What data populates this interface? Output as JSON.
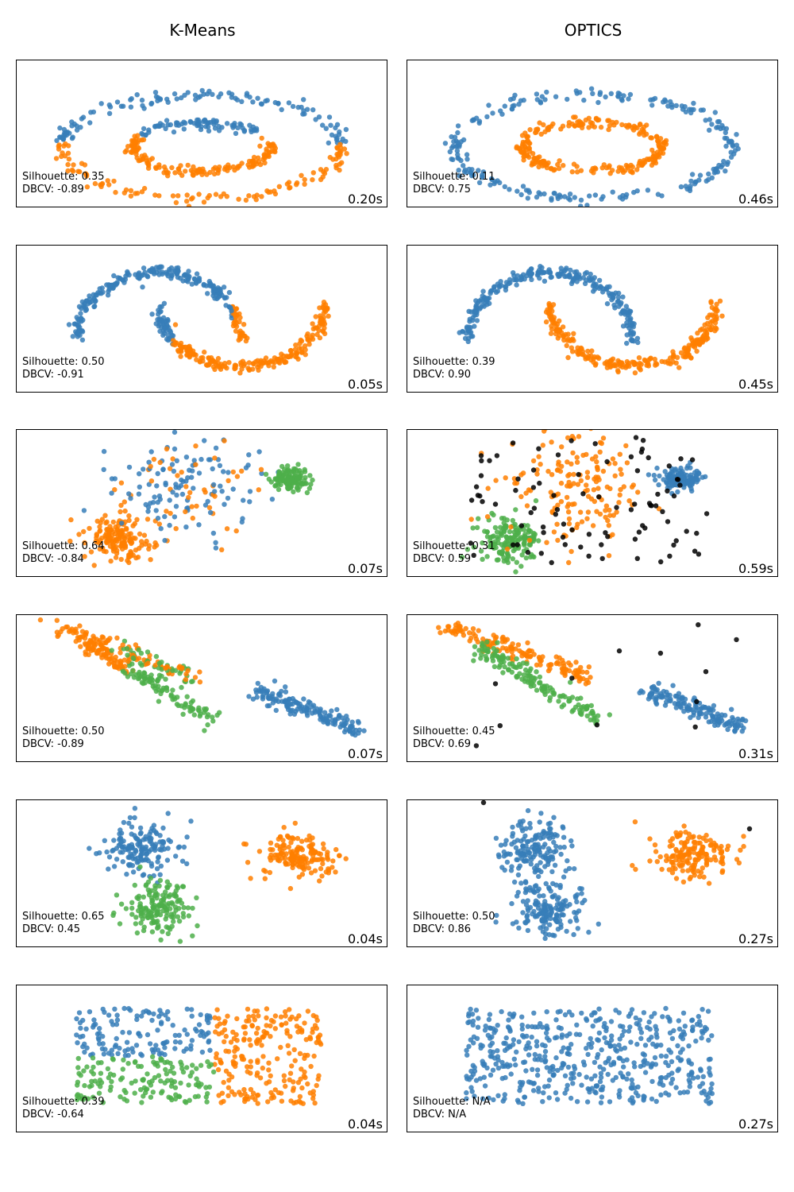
{
  "columns": [
    "K-Means",
    "OPTICS"
  ],
  "colors": {
    "c0": "#377eb8",
    "c1": "#ff7f00",
    "c2": "#4daf4a",
    "noise": "#000000"
  },
  "chart_data": [
    {
      "type": "scatter",
      "dataset": "circles",
      "algorithm": "K-Means",
      "silhouette": "Silhouette: 0.35",
      "dbcv": "DBCV: -0.89",
      "time": "0.20s",
      "xlim": [
        -1.15,
        1.15
      ],
      "ylim": [
        -1.15,
        1.15
      ],
      "groups": [
        {
          "color": "#377eb8",
          "region": "outer ring upper half + inner ring upper half"
        },
        {
          "color": "#ff7f00",
          "region": "outer ring lower half + inner ring lower half"
        }
      ]
    },
    {
      "type": "scatter",
      "dataset": "circles",
      "algorithm": "OPTICS",
      "silhouette": "Silhouette: 0.11",
      "dbcv": "DBCV: 0.75",
      "time": "0.46s",
      "xlim": [
        -1.15,
        1.15
      ],
      "ylim": [
        -1.15,
        1.15
      ],
      "groups": [
        {
          "color": "#377eb8",
          "region": "outer ring"
        },
        {
          "color": "#ff7f00",
          "region": "inner ring"
        }
      ]
    },
    {
      "type": "scatter",
      "dataset": "moons",
      "algorithm": "K-Means",
      "silhouette": "Silhouette: 0.50",
      "dbcv": "DBCV: -0.91",
      "time": "0.05s",
      "groups": [
        {
          "color": "#377eb8",
          "region": "upper moon + left tip of lower moon"
        },
        {
          "color": "#ff7f00",
          "region": "lower moon + right tip of upper moon"
        }
      ]
    },
    {
      "type": "scatter",
      "dataset": "moons",
      "algorithm": "OPTICS",
      "silhouette": "Silhouette: 0.39",
      "dbcv": "DBCV: 0.90",
      "time": "0.45s",
      "groups": [
        {
          "color": "#377eb8",
          "region": "upper moon"
        },
        {
          "color": "#ff7f00",
          "region": "lower moon"
        }
      ]
    },
    {
      "type": "scatter",
      "dataset": "varied blobs",
      "algorithm": "K-Means",
      "silhouette": "Silhouette: 0.64",
      "dbcv": "DBCV: -0.84",
      "time": "0.07s",
      "groups": [
        {
          "color": "#377eb8",
          "region": "wide middle blob"
        },
        {
          "color": "#ff7f00",
          "region": "lower-left blob"
        },
        {
          "color": "#4daf4a",
          "region": "tight right blob"
        }
      ]
    },
    {
      "type": "scatter",
      "dataset": "varied blobs",
      "algorithm": "OPTICS",
      "silhouette": "Silhouette: 0.31",
      "dbcv": "DBCV: 0.59",
      "time": "0.59s",
      "groups": [
        {
          "color": "#377eb8",
          "region": "tight right blob"
        },
        {
          "color": "#ff7f00",
          "region": "wide middle blob"
        },
        {
          "color": "#4daf4a",
          "region": "lower-left blob"
        },
        {
          "color": "#000000",
          "region": "noise"
        }
      ]
    },
    {
      "type": "scatter",
      "dataset": "anisotropic",
      "algorithm": "K-Means",
      "silhouette": "Silhouette: 0.50",
      "dbcv": "DBCV: -0.89",
      "time": "0.07s",
      "groups": [
        {
          "color": "#377eb8",
          "region": "right diagonal band"
        },
        {
          "color": "#ff7f00",
          "region": "upper-left diagonal band"
        },
        {
          "color": "#4daf4a",
          "region": "lower-left diagonal band"
        }
      ]
    },
    {
      "type": "scatter",
      "dataset": "anisotropic",
      "algorithm": "OPTICS",
      "silhouette": "Silhouette: 0.45",
      "dbcv": "DBCV: 0.69",
      "time": "0.31s",
      "groups": [
        {
          "color": "#377eb8",
          "region": "right diagonal band"
        },
        {
          "color": "#ff7f00",
          "region": "upper diagonal band"
        },
        {
          "color": "#4daf4a",
          "region": "lower diagonal band"
        },
        {
          "color": "#000000",
          "region": "noise"
        }
      ]
    },
    {
      "type": "scatter",
      "dataset": "blobs",
      "algorithm": "K-Means",
      "silhouette": "Silhouette: 0.65",
      "dbcv": "DBCV: 0.45",
      "time": "0.04s",
      "groups": [
        {
          "color": "#377eb8",
          "region": "upper-left blob"
        },
        {
          "color": "#ff7f00",
          "region": "right blob"
        },
        {
          "color": "#4daf4a",
          "region": "lower-left blob"
        }
      ]
    },
    {
      "type": "scatter",
      "dataset": "blobs",
      "algorithm": "OPTICS",
      "silhouette": "Silhouette: 0.50",
      "dbcv": "DBCV: 0.86",
      "time": "0.27s",
      "groups": [
        {
          "color": "#377eb8",
          "region": "left two blobs merged"
        },
        {
          "color": "#ff7f00",
          "region": "right blob"
        },
        {
          "color": "#000000",
          "region": "noise"
        }
      ]
    },
    {
      "type": "scatter",
      "dataset": "no structure",
      "algorithm": "K-Means",
      "silhouette": "Silhouette: 0.39",
      "dbcv": "DBCV: -0.64",
      "time": "0.04s",
      "groups": [
        {
          "color": "#377eb8",
          "region": "upper-left"
        },
        {
          "color": "#ff7f00",
          "region": "right"
        },
        {
          "color": "#4daf4a",
          "region": "lower-left"
        }
      ]
    },
    {
      "type": "scatter",
      "dataset": "no structure",
      "algorithm": "OPTICS",
      "silhouette": "Silhouette: N/A",
      "dbcv": "DBCV: N/A",
      "time": "0.27s",
      "groups": [
        {
          "color": "#377eb8",
          "region": "all points"
        }
      ]
    }
  ]
}
